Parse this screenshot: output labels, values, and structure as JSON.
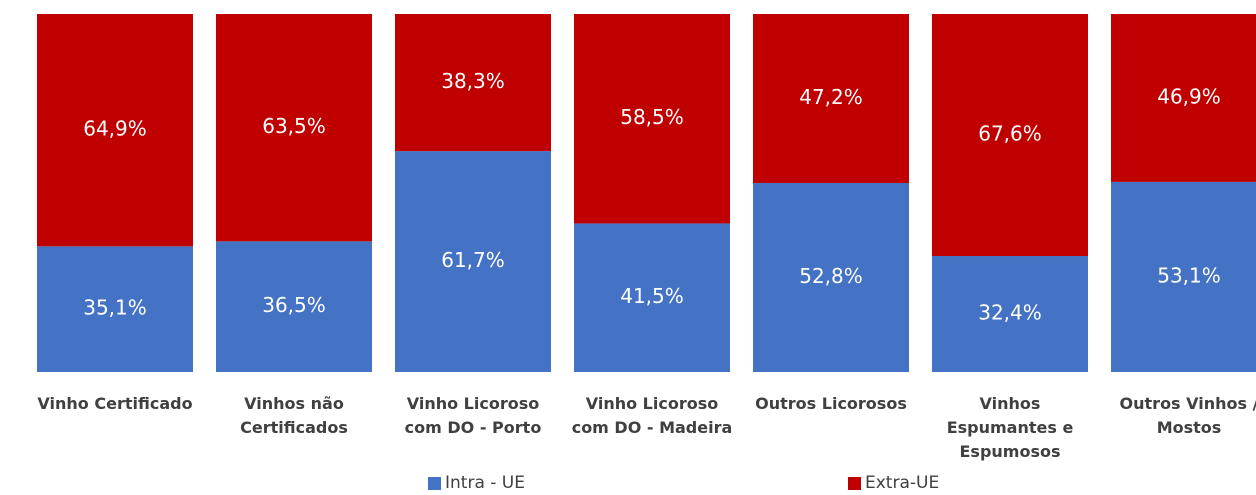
{
  "chart_data": {
    "type": "stacked-bar",
    "categories": [
      "Vinho Certificado",
      "Vinhos não Certificados",
      "Vinho Licoroso com DO - Porto",
      "Vinho Licoroso com DO - Madeira",
      "Outros Licorosos",
      "Vinhos Espumantes e Espumosos",
      "Outros Vinhos / Mostos"
    ],
    "series": [
      {
        "name": "Intra - UE",
        "color": "#4472c4",
        "values": [
          35.1,
          36.5,
          61.7,
          41.5,
          52.8,
          32.4,
          53.1
        ],
        "value_labels": [
          "35,1%",
          "36,5%",
          "61,7%",
          "41,5%",
          "52,8%",
          "32,4%",
          "53,1%"
        ]
      },
      {
        "name": "Extra-UE",
        "color": "#c00000",
        "values": [
          64.9,
          63.5,
          38.3,
          58.5,
          47.2,
          67.6,
          46.9
        ],
        "value_labels": [
          "64,9%",
          "63,5%",
          "38,3%",
          "58,5%",
          "47,2%",
          "67,6%",
          "46,9%"
        ]
      }
    ]
  }
}
